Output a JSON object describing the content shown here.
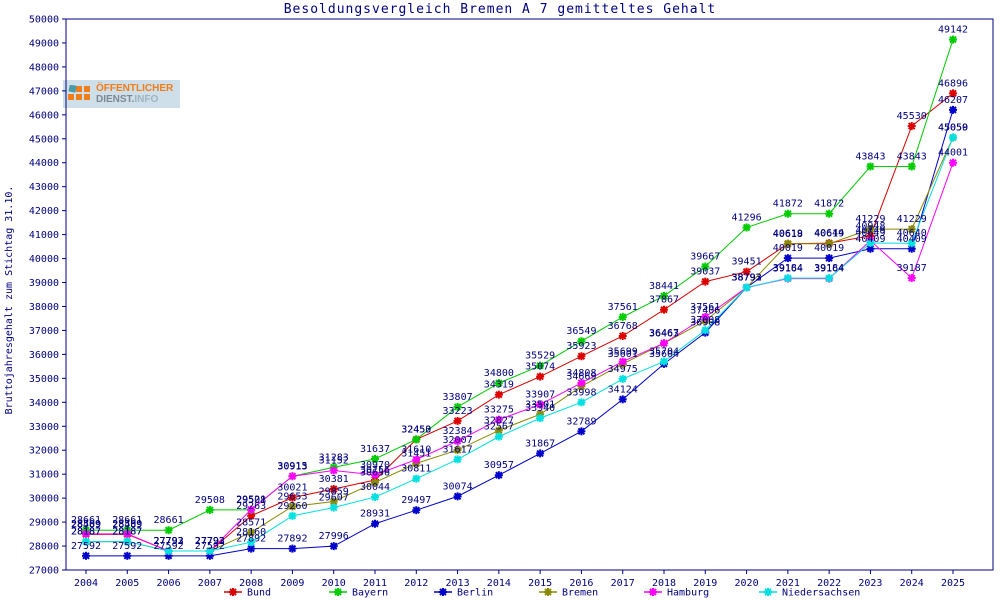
{
  "page": {
    "window_title": "Besoldungsvergleich Bremen A 7 gemitteltes Gehalt"
  },
  "logo": {
    "line1": "ÖFFENTLICHER",
    "line2_part1": "DIENST.",
    "line2_part2": "INFO"
  },
  "chart_data": {
    "type": "line",
    "title": "Besoldungsvergleich Bremen A 7 gemitteltes Gehalt",
    "xlabel": "",
    "ylabel": "Bruttojahresgehalt zum Stichtag 31.10.",
    "ylim": [
      27000,
      50000
    ],
    "ytick_step": 1000,
    "grid": false,
    "legend_position": "bottom",
    "point_labels": true,
    "text_color": "#000080",
    "x": [
      2004,
      2005,
      2006,
      2007,
      2008,
      2009,
      2010,
      2011,
      2012,
      2013,
      2014,
      2015,
      2016,
      2017,
      2018,
      2019,
      2020,
      2021,
      2022,
      2023,
      2024,
      2025
    ],
    "series": [
      {
        "name": "Bund",
        "color": "#dd0000",
        "values": [
          28489,
          28489,
          27793,
          27793,
          29263,
          30021,
          30381,
          30756,
          32453,
          33223,
          34319,
          35074,
          35923,
          36768,
          37867,
          39037,
          39451,
          40618,
          40644,
          40948,
          45530,
          46896
        ]
      },
      {
        "name": "Bayern",
        "color": "#00cc00",
        "values": [
          28661,
          28661,
          28661,
          29508,
          29508,
          30913,
          31283,
          31637,
          32450,
          33807,
          34800,
          35529,
          36549,
          37561,
          38441,
          39667,
          41296,
          41872,
          41872,
          43843,
          43843,
          49142
        ]
      },
      {
        "name": "Berlin",
        "color": "#0000cc",
        "values": [
          27592,
          27592,
          27592,
          27592,
          27892,
          27892,
          27996,
          28931,
          29497,
          30074,
          30957,
          31867,
          32789,
          34124,
          35604,
          36908,
          38793,
          40019,
          40019,
          40409,
          40409,
          46207
        ]
      },
      {
        "name": "Bremen",
        "color": "#8a8a00",
        "values": [
          28187,
          28187,
          27792,
          27792,
          28571,
          29653,
          29859,
          30656,
          31451,
          32007,
          32827,
          33501,
          34669,
          35601,
          36463,
          37406,
          38792,
          40619,
          40619,
          41229,
          41229,
          45050
        ]
      },
      {
        "name": "Hamburg",
        "color": "#ff00ff",
        "values": [
          28509,
          28509,
          27793,
          27793,
          29521,
          30915,
          31152,
          30970,
          31610,
          32384,
          33275,
          33907,
          34808,
          35699,
          36467,
          37561,
          38792,
          39164,
          39164,
          40749,
          39187,
          44001
        ]
      },
      {
        "name": "Niedersachsen",
        "color": "#00e0e0",
        "values": [
          28187,
          28187,
          27792,
          27792,
          28160,
          29260,
          29607,
          30044,
          30811,
          31617,
          32567,
          33340,
          33998,
          34975,
          35704,
          37008,
          38793,
          39184,
          39184,
          40649,
          40640,
          45059
        ]
      }
    ]
  }
}
